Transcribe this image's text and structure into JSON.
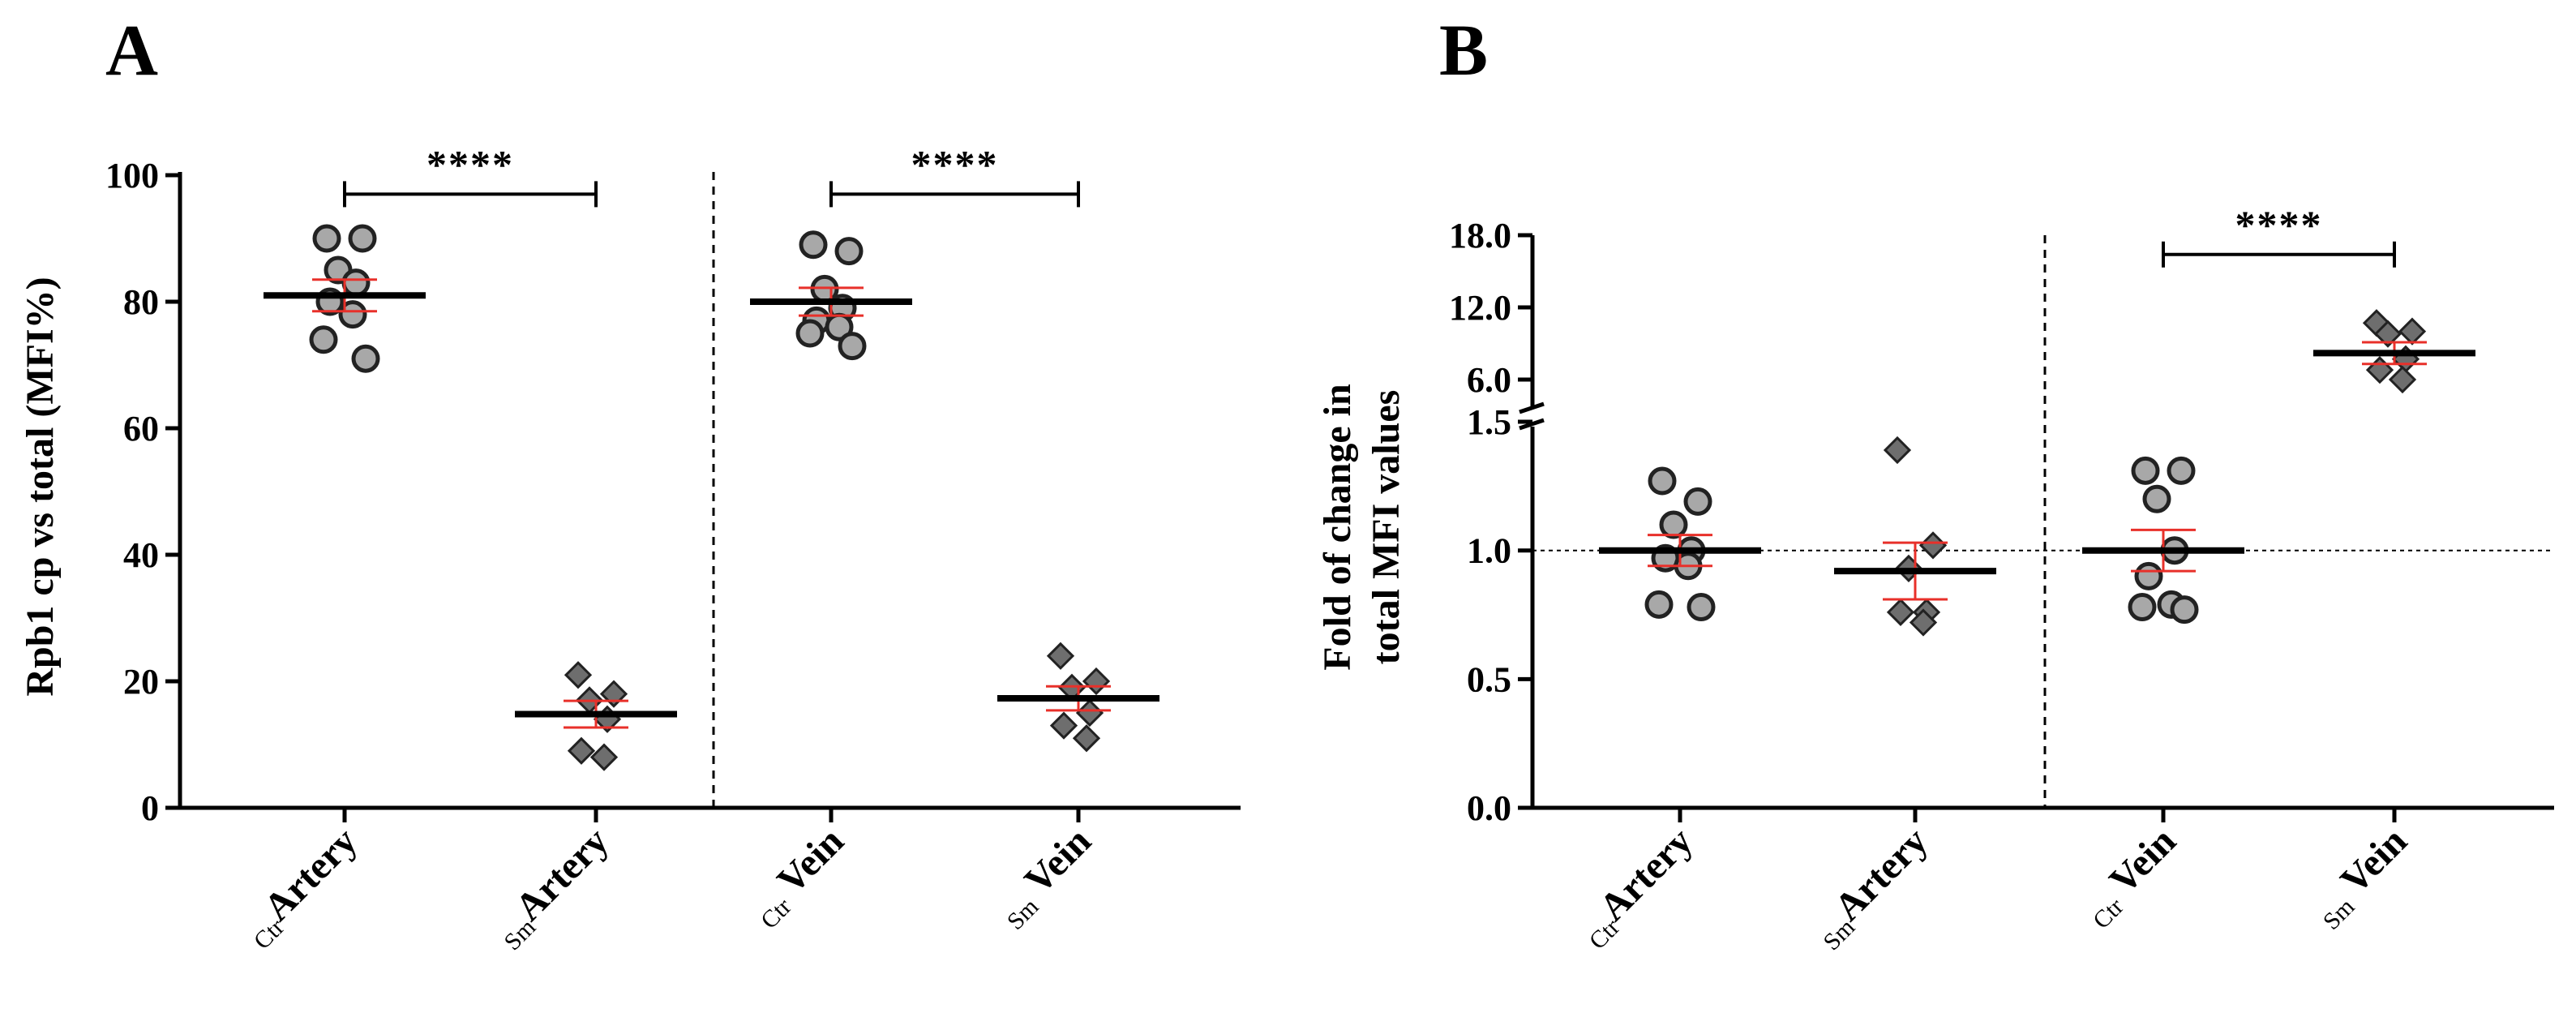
{
  "chart_data": [
    {
      "panel_label": "A",
      "type": "scatter",
      "ylabel": "Rpb1 cp vs total (MFI%)",
      "ylim": [
        0,
        100
      ],
      "yticks": [
        0,
        20,
        40,
        60,
        80,
        100
      ],
      "yticks_text": [
        "0",
        "20",
        "40",
        "60",
        "80",
        "100"
      ],
      "groups": [
        {
          "sub": "Ctr",
          "name": "Artery",
          "marker": "circle",
          "mean": 81,
          "err": [
            78.5,
            83.5
          ],
          "points": [
            90,
            90,
            85,
            83,
            80,
            78,
            74,
            71
          ]
        },
        {
          "sub": "Sm",
          "name": "Artery",
          "marker": "diamond",
          "mean": 14.8,
          "err": [
            12.7,
            16.9
          ],
          "points": [
            21,
            18,
            17,
            14,
            9,
            8
          ]
        },
        {
          "sub": "Ctr",
          "name": "Vein",
          "marker": "circle",
          "mean": 80,
          "err": [
            77.8,
            82.2
          ],
          "points": [
            89,
            88,
            82,
            79,
            77,
            76,
            75,
            73
          ]
        },
        {
          "sub": "Sm",
          "name": "Vein",
          "marker": "diamond",
          "mean": 17.3,
          "err": [
            15.4,
            19.2
          ],
          "points": [
            24,
            20,
            19,
            15,
            13,
            11
          ]
        }
      ],
      "significance": [
        {
          "from": 0,
          "to": 1,
          "label": "****",
          "y": 97
        },
        {
          "from": 2,
          "to": 3,
          "label": "****",
          "y": 97
        }
      ],
      "divider": "between Artery and Vein"
    },
    {
      "panel_label": "B",
      "type": "scatter",
      "ylabel": [
        "Fold of change in",
        "total  MFI values"
      ],
      "axis_break": true,
      "ylim_lower": [
        0,
        1.5
      ],
      "yticks_lower": [
        0.0,
        0.5,
        1.0,
        1.5
      ],
      "yticks_lower_text": [
        "0.0",
        "0.5",
        "1.0",
        "1.5"
      ],
      "ylim_upper": [
        4,
        18
      ],
      "yticks_upper": [
        6,
        12,
        18
      ],
      "yticks_upper_text": [
        "6.0",
        "12.0",
        "18.0"
      ],
      "reference_line": 1.0,
      "groups": [
        {
          "sub": "Ctr",
          "name": "Artery",
          "marker": "circle",
          "mean": 1.0,
          "err": [
            0.94,
            1.06
          ],
          "points": [
            1.27,
            1.19,
            1.1,
            1.0,
            0.97,
            0.94,
            0.79,
            0.78
          ]
        },
        {
          "sub": "Sm",
          "name": "Artery",
          "marker": "diamond",
          "mean": 0.92,
          "err": [
            0.81,
            1.03
          ],
          "points": [
            1.39,
            1.02,
            0.93,
            0.76,
            0.76,
            0.72
          ]
        },
        {
          "sub": "Ctr",
          "name": "Vein",
          "marker": "circle",
          "mean": 1.0,
          "err": [
            0.92,
            1.08
          ],
          "points": [
            1.31,
            1.31,
            1.2,
            1.0,
            0.9,
            0.79,
            0.78,
            0.77
          ]
        },
        {
          "sub": "Sm",
          "name": "Vein",
          "marker": "diamond",
          "mean": 8.2,
          "err": [
            7.3,
            9.1
          ],
          "points": [
            10.7,
            10.0,
            9.8,
            7.7,
            6.8,
            6.0
          ]
        }
      ],
      "significance": [
        {
          "from": 2,
          "to": 3,
          "label": "****",
          "y": 16.4
        }
      ],
      "divider": "between Artery and Vein"
    }
  ],
  "colors": {
    "axis": "#000000",
    "circle_fill": "#a8a8a8",
    "diamond_fill": "#6e6e6e",
    "marker_stroke": "#222222",
    "error_bar": "#e8302a",
    "mean_bar": "#000000"
  }
}
